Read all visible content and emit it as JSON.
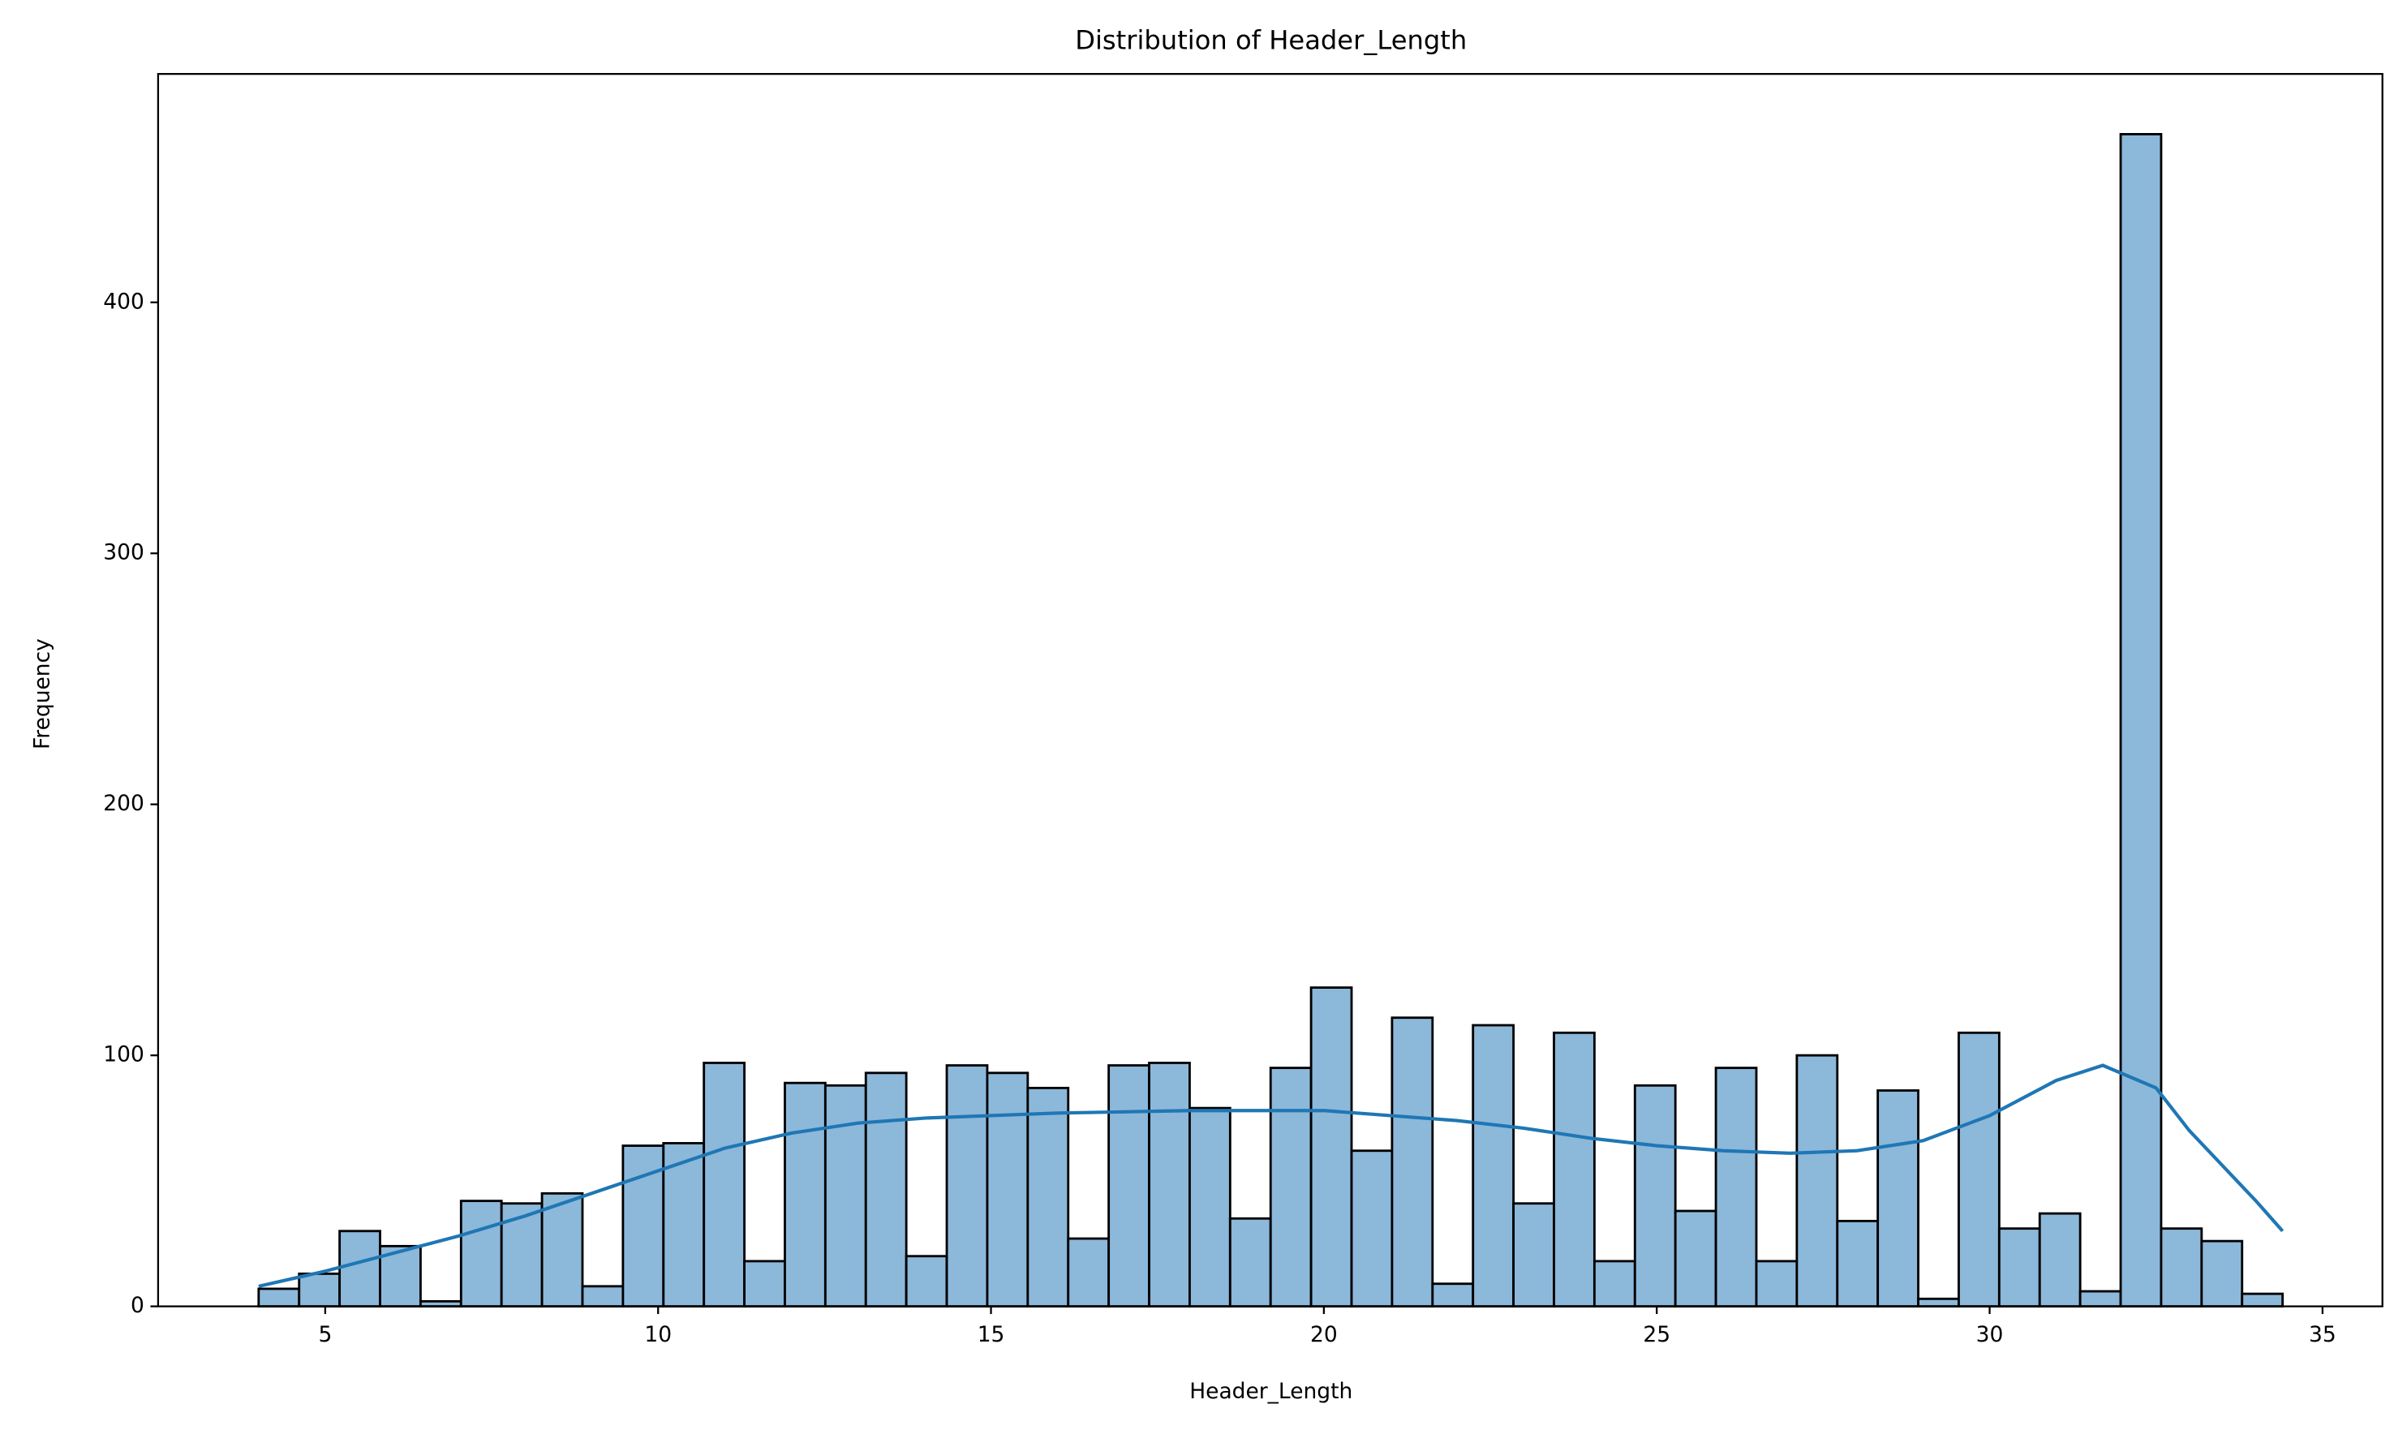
{
  "chart_data": {
    "type": "histogram",
    "title": "Distribution of Header_Length",
    "x_label": "Header_Length",
    "y_label": "Frequency",
    "bins": [
      4.0,
      4.608,
      5.216,
      5.824,
      6.432,
      7.04,
      7.648,
      8.256,
      8.864,
      9.472,
      10.08,
      10.688,
      11.296,
      11.904,
      12.512,
      13.12,
      13.728,
      14.336,
      14.944,
      15.552,
      16.16,
      16.768,
      17.376,
      17.984,
      18.592,
      19.2,
      19.808,
      20.416,
      21.024,
      21.632,
      22.24,
      22.848,
      23.456,
      24.064,
      24.672,
      25.28,
      25.888,
      26.496,
      27.104,
      27.712,
      28.32,
      28.928,
      29.536,
      30.144,
      30.752,
      31.36,
      31.968,
      32.576,
      33.184,
      33.792,
      34.4
    ],
    "values": [
      7,
      13,
      30,
      24,
      2,
      42,
      41,
      45,
      8,
      64,
      65,
      97,
      18,
      89,
      88,
      93,
      20,
      96,
      93,
      87,
      27,
      96,
      97,
      79,
      35,
      95,
      127,
      62,
      115,
      9,
      112,
      41,
      109,
      18,
      88,
      38,
      95,
      18,
      100,
      34,
      86,
      3,
      109,
      31,
      37,
      6,
      467,
      31,
      26,
      5
    ],
    "color": "#8cb8da",
    "edgecolor": "#000000",
    "kde": {
      "color": "#1f77b4",
      "x": [
        4,
        5,
        6,
        7,
        8,
        9,
        10,
        11,
        12,
        13,
        14,
        15,
        16,
        17,
        18,
        19,
        20,
        21,
        22,
        23,
        24,
        25,
        26,
        27,
        28,
        29,
        30,
        31,
        31.7,
        32.5,
        33,
        34,
        34.4
      ],
      "values": [
        8,
        14,
        21,
        28,
        36,
        45,
        54,
        63,
        69,
        73,
        75,
        76,
        77,
        77.5,
        78,
        78,
        78,
        76,
        74,
        71,
        67,
        64,
        62,
        61,
        62,
        66,
        76,
        90,
        96,
        87,
        70,
        42,
        30
      ]
    },
    "xlim": [
      2.49,
      35.9
    ],
    "ylim": [
      0,
      491
    ],
    "xticks": [
      5,
      10,
      15,
      20,
      25,
      30,
      35
    ],
    "yticks": [
      0,
      100,
      200,
      300,
      400
    ]
  }
}
